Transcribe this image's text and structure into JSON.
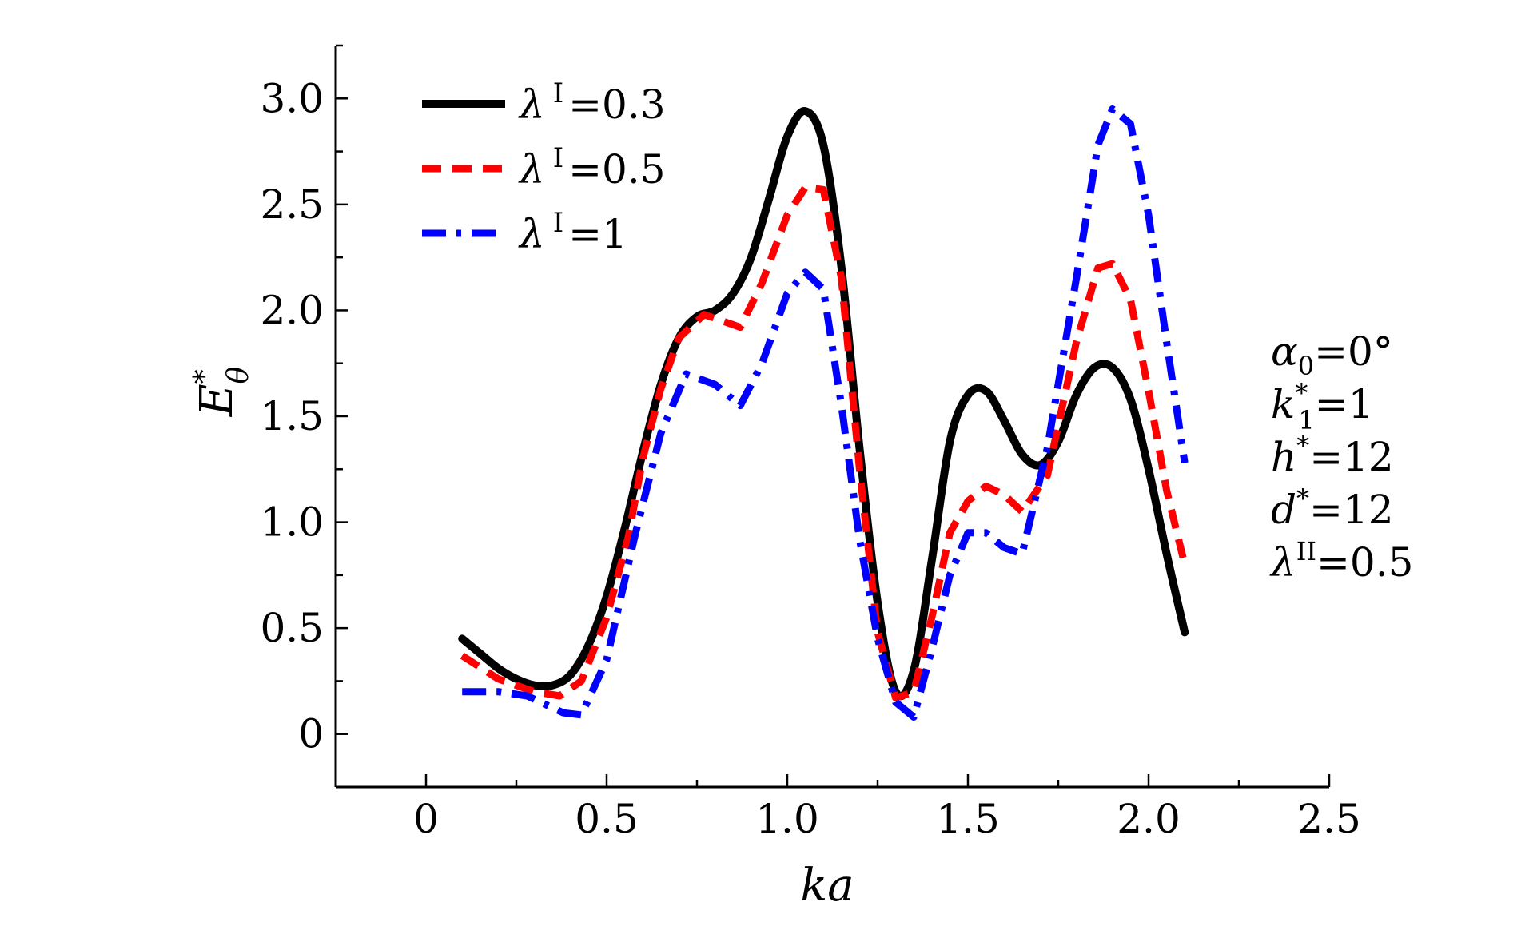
{
  "chart_data": {
    "type": "line",
    "title": "",
    "xlabel": "ka",
    "ylabel": {
      "base": "E",
      "sup": "*",
      "sub": "θ"
    },
    "xlim": [
      -0.25,
      2.5
    ],
    "ylim": [
      -0.25,
      3.25
    ],
    "xticks": [
      0,
      0.5,
      1.0,
      1.5,
      2.0,
      2.5
    ],
    "xtick_labels": [
      "0",
      "0.5",
      "1.0",
      "1.5",
      "2.0",
      "2.5"
    ],
    "yticks": [
      0,
      0.5,
      1.0,
      1.5,
      2.0,
      2.5,
      3.0
    ],
    "ytick_labels": [
      "0",
      "0.5",
      "1.0",
      "1.5",
      "2.0",
      "2.5",
      "3.0"
    ],
    "grid": false,
    "legend_position": "top-left",
    "series": [
      {
        "name": "λ I =0.3",
        "legend": {
          "sym": "λ",
          "sup": "I",
          "val": "=0.3"
        },
        "color": "#000000",
        "dash": "solid",
        "x": [
          0.1,
          0.15,
          0.2,
          0.25,
          0.3,
          0.35,
          0.4,
          0.45,
          0.5,
          0.55,
          0.6,
          0.65,
          0.7,
          0.75,
          0.8,
          0.85,
          0.9,
          0.95,
          1.0,
          1.05,
          1.1,
          1.15,
          1.2,
          1.25,
          1.3,
          1.35,
          1.4,
          1.45,
          1.5,
          1.55,
          1.6,
          1.65,
          1.7,
          1.75,
          1.8,
          1.85,
          1.9,
          1.95,
          2.0,
          2.05,
          2.1
        ],
        "y": [
          0.45,
          0.38,
          0.31,
          0.26,
          0.23,
          0.23,
          0.28,
          0.42,
          0.65,
          0.97,
          1.33,
          1.65,
          1.87,
          1.97,
          2.0,
          2.08,
          2.25,
          2.53,
          2.82,
          2.94,
          2.78,
          2.2,
          1.35,
          0.62,
          0.2,
          0.3,
          0.82,
          1.38,
          1.6,
          1.62,
          1.48,
          1.32,
          1.27,
          1.38,
          1.6,
          1.73,
          1.73,
          1.58,
          1.25,
          0.85,
          0.48
        ]
      },
      {
        "name": "λ I =0.5",
        "legend": {
          "sym": "λ",
          "sup": "I",
          "val": "=0.5"
        },
        "color": "#ff0000",
        "dash": "dashed",
        "x": [
          0.1,
          0.2,
          0.3,
          0.37,
          0.43,
          0.5,
          0.56,
          0.6,
          0.65,
          0.7,
          0.77,
          0.87,
          0.93,
          1.0,
          1.05,
          1.1,
          1.15,
          1.2,
          1.25,
          1.3,
          1.35,
          1.4,
          1.45,
          1.5,
          1.55,
          1.6,
          1.65,
          1.72,
          1.8,
          1.86,
          1.9,
          1.95,
          2.0,
          2.05,
          2.1
        ],
        "y": [
          0.37,
          0.26,
          0.2,
          0.18,
          0.25,
          0.55,
          0.93,
          1.3,
          1.63,
          1.87,
          1.98,
          1.92,
          2.13,
          2.45,
          2.58,
          2.57,
          2.15,
          1.25,
          0.48,
          0.17,
          0.2,
          0.55,
          0.95,
          1.1,
          1.17,
          1.13,
          1.05,
          1.22,
          1.85,
          2.2,
          2.22,
          2.05,
          1.62,
          1.15,
          0.8
        ]
      },
      {
        "name": "λ I =1",
        "legend": {
          "sym": "λ",
          "sup": "I",
          "val": "=1"
        },
        "color": "#0000ff",
        "dash": "dashdot",
        "x": [
          0.1,
          0.2,
          0.28,
          0.33,
          0.38,
          0.43,
          0.5,
          0.58,
          0.65,
          0.72,
          0.8,
          0.87,
          0.93,
          1.0,
          1.05,
          1.1,
          1.15,
          1.2,
          1.25,
          1.3,
          1.35,
          1.4,
          1.45,
          1.5,
          1.55,
          1.6,
          1.65,
          1.72,
          1.8,
          1.86,
          1.9,
          1.95,
          2.0,
          2.05,
          2.1
        ],
        "y": [
          0.2,
          0.2,
          0.18,
          0.14,
          0.1,
          0.09,
          0.35,
          0.95,
          1.42,
          1.7,
          1.65,
          1.55,
          1.75,
          2.08,
          2.18,
          2.1,
          1.55,
          0.92,
          0.45,
          0.15,
          0.08,
          0.4,
          0.75,
          0.95,
          0.95,
          0.88,
          0.85,
          1.35,
          2.15,
          2.78,
          2.95,
          2.88,
          2.45,
          1.85,
          1.28
        ]
      }
    ],
    "annotations": [
      {
        "sym": "α",
        "sub": "0",
        "sup": "",
        "val": "=0°"
      },
      {
        "sym": "k",
        "sub": "1",
        "sup": "*",
        "val": "=1"
      },
      {
        "sym": "h",
        "sub": "",
        "sup": "*",
        "val": "=12"
      },
      {
        "sym": "d",
        "sub": "",
        "sup": "*",
        "val": "=12"
      },
      {
        "sym": "λ",
        "sub": "",
        "sup": "II",
        "val": "=0.5"
      }
    ]
  }
}
